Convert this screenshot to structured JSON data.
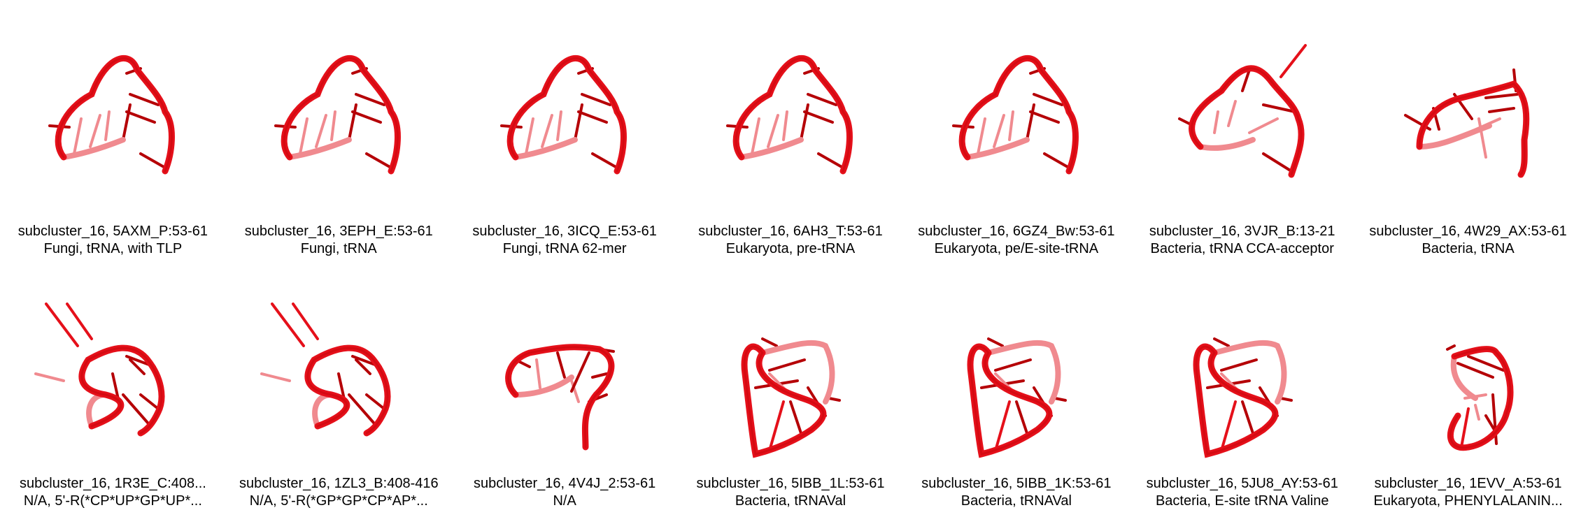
{
  "colors": {
    "ribbon_dark": "#b50006",
    "ribbon": "#e5101a",
    "ribbon_light": "#f08a8f",
    "background": "#ffffff"
  },
  "panels": [
    {
      "title": "subcluster_16, 5AXM_P:53-61",
      "subtitle": "Fungi, tRNA, with TLP",
      "icon": "rna-loop-structure"
    },
    {
      "title": "subcluster_16, 3EPH_E:53-61",
      "subtitle": "Fungi, tRNA",
      "icon": "rna-loop-structure"
    },
    {
      "title": "subcluster_16, 3ICQ_E:53-61",
      "subtitle": "Fungi, tRNA 62-mer",
      "icon": "rna-loop-structure"
    },
    {
      "title": "subcluster_16, 6AH3_T:53-61",
      "subtitle": "Eukaryota, pre-tRNA",
      "icon": "rna-loop-structure"
    },
    {
      "title": "subcluster_16, 6GZ4_Bw:53-61",
      "subtitle": "Eukaryota, pe/E-site-tRNA",
      "icon": "rna-loop-structure"
    },
    {
      "title": "subcluster_16, 3VJR_B:13-21",
      "subtitle": "Bacteria, tRNA CCA-acceptor",
      "icon": "rna-loop-structure"
    },
    {
      "title": "subcluster_16, 4W29_AX:53-61",
      "subtitle": "Bacteria, tRNA",
      "icon": "rna-loop-structure"
    },
    {
      "title": "subcluster_16, 1R3E_C:408...",
      "subtitle": "N/A, 5'-R(*CP*UP*GP*UP*...",
      "icon": "rna-loop-structure"
    },
    {
      "title": "subcluster_16, 1ZL3_B:408-416",
      "subtitle": "N/A, 5'-R(*GP*GP*CP*AP*...",
      "icon": "rna-loop-structure"
    },
    {
      "title": "subcluster_16, 4V4J_2:53-61",
      "subtitle": "N/A",
      "icon": "rna-loop-structure"
    },
    {
      "title": "subcluster_16, 5IBB_1L:53-61",
      "subtitle": "Bacteria, tRNAVal",
      "icon": "rna-loop-structure"
    },
    {
      "title": "subcluster_16, 5IBB_1K:53-61",
      "subtitle": "Bacteria, tRNAVal",
      "icon": "rna-loop-structure"
    },
    {
      "title": "subcluster_16, 5JU8_AY:53-61",
      "subtitle": "Bacteria, E-site tRNA Valine",
      "icon": "rna-loop-structure"
    },
    {
      "title": "subcluster_16, 1EVV_A:53-61",
      "subtitle": "Eukaryota, PHENYLALANIN...",
      "icon": "rna-loop-structure"
    }
  ]
}
